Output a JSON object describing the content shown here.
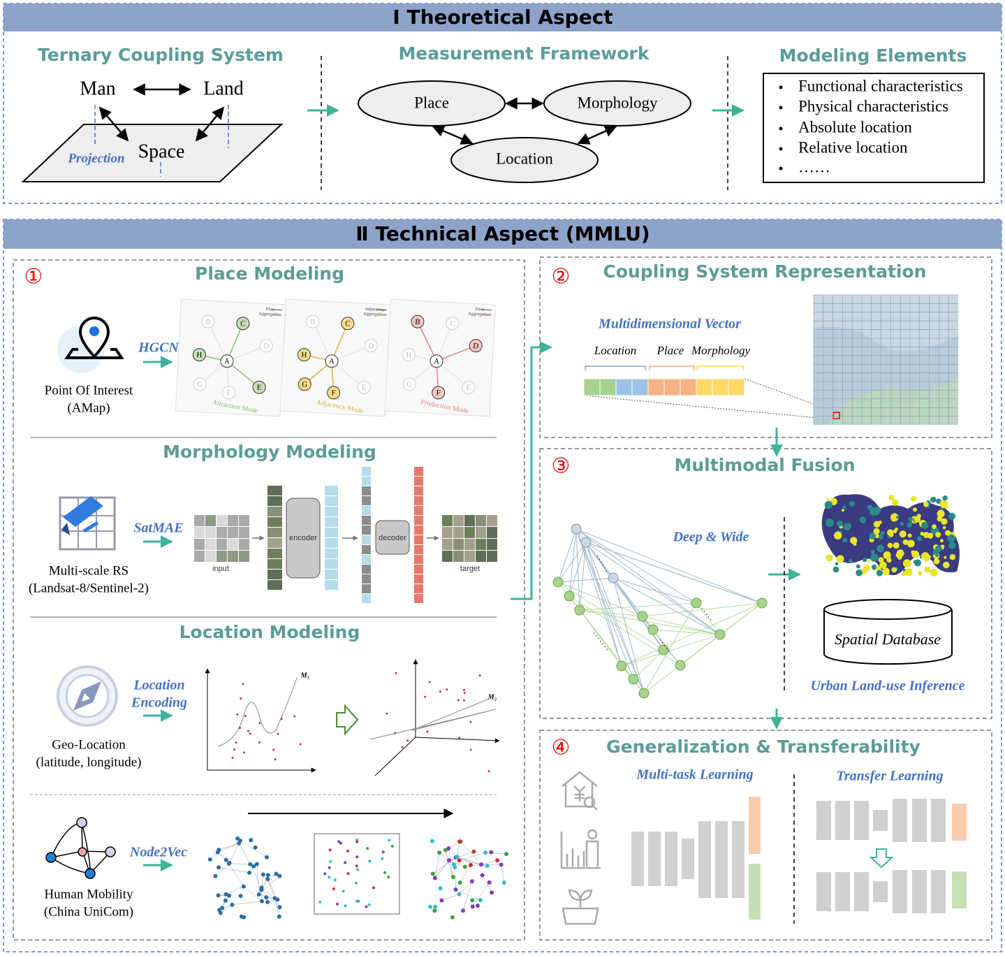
{
  "section1": {
    "title": "Ⅰ Theoretical Aspect",
    "ternary": {
      "title": "Ternary Coupling System",
      "man": "Man",
      "land": "Land",
      "space": "Space",
      "projection": "Projection"
    },
    "framework": {
      "title": "Measurement Framework",
      "place": "Place",
      "morphology": "Morphology",
      "location": "Location"
    },
    "elements": {
      "title": "Modeling Elements",
      "items": [
        "Functional characteristics",
        "Physical characteristics",
        "Absolute location",
        "Relative location",
        "……"
      ]
    }
  },
  "section2": {
    "title": "Ⅱ Technical Aspect (MMLU)",
    "panel1": {
      "number": "①",
      "place": {
        "title": "Place Modeling",
        "source": "Point Of Interest",
        "source_note": "(AMap)",
        "method": "HGCN",
        "modes": [
          {
            "legend": [
              "Flow",
              "Aggregation"
            ],
            "name": "Attraction Mode",
            "nodes": [
              "B",
              "C",
              "D",
              "E",
              "F",
              "G",
              "H",
              "A"
            ]
          },
          {
            "legend": [
              "Adjacency",
              "Aggregation"
            ],
            "name": "Adjacency Mode",
            "nodes": [
              "B",
              "C",
              "D",
              "E",
              "F",
              "G",
              "H",
              "A"
            ]
          },
          {
            "legend": [
              "Flow",
              "Aggregation"
            ],
            "name": "Production Mode",
            "nodes": [
              "B",
              "C",
              "D",
              "E",
              "F",
              "G",
              "H",
              "A"
            ]
          }
        ]
      },
      "morphology": {
        "title": "Morphology Modeling",
        "source": "Multi-scale RS",
        "source_note": "(Landsat-8/Sentinel-2)",
        "method": "SatMAE",
        "input": "input",
        "encoder": "encoder",
        "decoder": "decoder",
        "target": "target"
      },
      "location": {
        "title": "Location Modeling",
        "source": "Geo-Location",
        "source_note": "(latitude, longitude)",
        "method": [
          "Location",
          "Encoding"
        ],
        "manifold_1": "M₁",
        "manifold_2": "M₂"
      },
      "mobility": {
        "source": "Human Mobility",
        "source_note": "(China UniCom)",
        "method": "Node2Vec"
      }
    },
    "panel2": {
      "number": "②",
      "title": "Coupling System Representation",
      "vector": "Multidimensional Vector",
      "parts": [
        "Location",
        "Place",
        "Morphology"
      ]
    },
    "panel3": {
      "number": "③",
      "title": "Multimodal Fusion",
      "model": "Deep & Wide",
      "database": "Spatial Database",
      "task": "Urban Land-use Inference"
    },
    "panel4": {
      "number": "④",
      "title": "Generalization & Transferability",
      "left": "Multi-task Learning",
      "right": "Transfer Learning"
    }
  }
}
